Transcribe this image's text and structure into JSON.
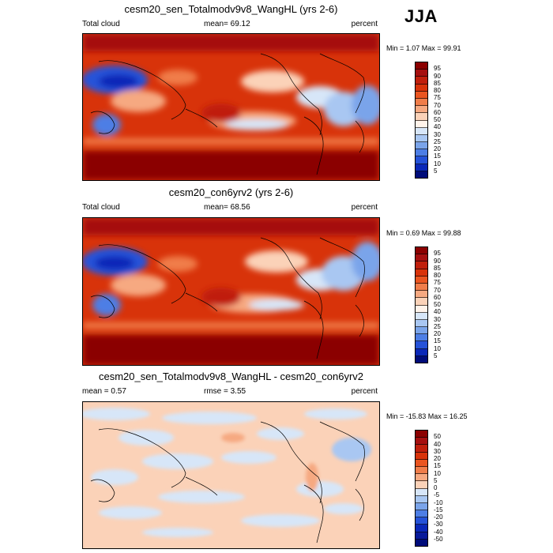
{
  "season": "JJA",
  "panels": [
    {
      "title": "cesm20_sen_Totalmodv9v8_WangHL (yrs 2-6)",
      "left": "Total cloud",
      "center": "mean=  69.12",
      "right": "percent",
      "minmax": "Min =   1.07 Max =  99.91",
      "scheme": "cloud"
    },
    {
      "title": "cesm20_con6yrv2 (yrs 2-6)",
      "left": "Total cloud",
      "center": "mean=  68.56",
      "right": "percent",
      "minmax": "Min =   0.69 Max =  99.88",
      "scheme": "cloud"
    },
    {
      "title": "cesm20_sen_Totalmodv9v8_WangHL - cesm20_con6yrv2",
      "left": "mean =   0.57",
      "center": "rmse =    3.55",
      "right": "percent",
      "minmax": "Min = -15.83 Max =  16.25",
      "scheme": "diff"
    }
  ],
  "colorbars": {
    "cloud": {
      "labels": [
        "95",
        "90",
        "85",
        "80",
        "75",
        "70",
        "60",
        "50",
        "40",
        "30",
        "25",
        "20",
        "15",
        "10",
        "5"
      ],
      "colors": [
        "#8b0000",
        "#a50f0f",
        "#c01f0c",
        "#d8330a",
        "#ea5520",
        "#f07d4a",
        "#f6a981",
        "#fbd2b8",
        "#fff3ea",
        "#d7e6f8",
        "#a9c7f2",
        "#7aa4ea",
        "#4d7ee5",
        "#2552d8",
        "#0a28b8",
        "#000c7a"
      ]
    },
    "diff": {
      "labels": [
        "50",
        "40",
        "30",
        "20",
        "15",
        "10",
        "5",
        "0",
        "-5",
        "-10",
        "-15",
        "-20",
        "-30",
        "-40",
        "-50"
      ],
      "colors": [
        "#8b0000",
        "#a50f0f",
        "#c01f0c",
        "#d8330a",
        "#ea5520",
        "#f07d4a",
        "#f6a981",
        "#fbd2b8",
        "#d7e6f8",
        "#a9c7f2",
        "#7aa4ea",
        "#4d7ee5",
        "#2552d8",
        "#0a28b8",
        "#081a9a",
        "#000c7a"
      ]
    }
  }
}
